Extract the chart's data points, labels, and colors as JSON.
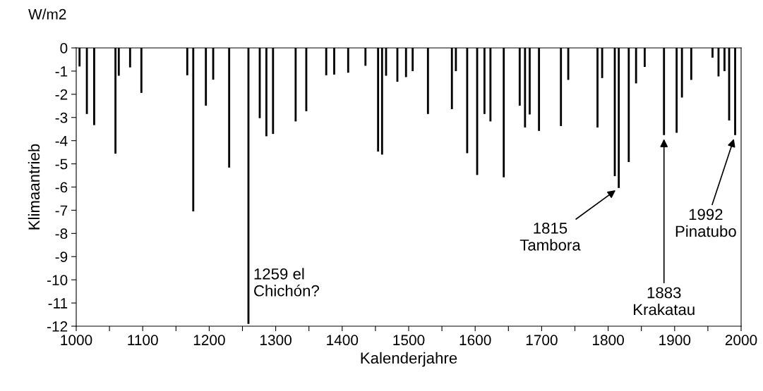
{
  "chart_data": {
    "type": "bar",
    "xlabel": "Kalenderjahre",
    "ylabel": "Klimaantrieb",
    "x": [
      1005,
      1016,
      1027,
      1059,
      1064,
      1081,
      1098,
      1167,
      1176,
      1195,
      1206,
      1230,
      1259,
      1276,
      1286,
      1296,
      1330,
      1346,
      1376,
      1388,
      1409,
      1435,
      1454,
      1460,
      1466,
      1483,
      1496,
      1506,
      1529,
      1565,
      1571,
      1588,
      1603,
      1614,
      1623,
      1643,
      1667,
      1675,
      1682,
      1696,
      1729,
      1740,
      1784,
      1791,
      1810,
      1816,
      1831,
      1842,
      1855,
      1884,
      1903,
      1911,
      1925,
      1957,
      1966,
      1975,
      1982,
      1991
    ],
    "values": [
      -0.8,
      -2.85,
      -3.33,
      -4.56,
      -1.2,
      -0.84,
      -1.94,
      -1.18,
      -7.05,
      -2.49,
      -1.37,
      -5.16,
      -11.9,
      -3.03,
      -3.81,
      -3.71,
      -3.17,
      -2.73,
      -1.18,
      -1.15,
      -1.07,
      -0.77,
      -4.47,
      -4.6,
      -1.2,
      -1.46,
      -1.26,
      -1.0,
      -2.85,
      -2.64,
      -1.0,
      -4.54,
      -5.48,
      -2.85,
      -3.17,
      -5.58,
      -2.49,
      -3.43,
      -2.87,
      -3.58,
      -3.37,
      -1.38,
      -3.43,
      -1.3,
      -5.53,
      -6.04,
      -4.92,
      -1.53,
      -0.82,
      -3.76,
      -3.66,
      -2.14,
      -1.38,
      -0.42,
      -1.23,
      -1.0,
      -3.13,
      -3.76
    ],
    "color": "#000000",
    "xlim": [
      1000,
      2000
    ],
    "xticks": [
      1000,
      {
        "value": 1050,
        "label": null
      },
      1100,
      {
        "value": 1150,
        "label": null
      },
      1200,
      {
        "value": 1250,
        "label": null
      },
      1300,
      {
        "value": 1350,
        "label": null
      },
      1400,
      {
        "value": 1450,
        "label": null
      },
      1500,
      {
        "value": 1550,
        "label": null
      },
      1600,
      {
        "value": 1650,
        "label": null
      },
      1700,
      {
        "value": 1750,
        "label": null
      },
      1800,
      {
        "value": 1850,
        "label": null
      },
      1900,
      {
        "value": 1950,
        "label": null
      },
      2000
    ],
    "ylim": [
      -12,
      0
    ],
    "yticks": [
      -12,
      -11,
      -10,
      -9,
      -8,
      -7,
      -6,
      -5,
      -4,
      -3,
      -2,
      -1,
      0
    ],
    "annotations": [
      "W/m2",
      {
        "text": "1259 el\nChichón?",
        "x": 1259,
        "y": -11.9
      },
      {
        "text": "1815\nTambora",
        "x": 1816,
        "y": -6.04
      },
      {
        "text": "1883\nKrakatau",
        "x": 1884,
        "y": -3.76
      },
      {
        "text": "1992\nPinatubo",
        "x": 1991,
        "y": -3.76
      }
    ]
  }
}
